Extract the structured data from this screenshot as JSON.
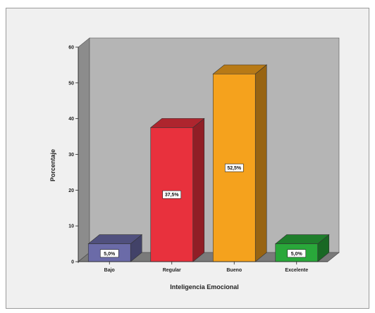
{
  "chart_data": {
    "type": "bar",
    "title": "",
    "xlabel": "Inteligencia Emocional",
    "ylabel": "Porcentaje",
    "categories": [
      "Bajo",
      "Regular",
      "Bueno",
      "Excelente"
    ],
    "values": [
      5.0,
      37.5,
      52.5,
      5.0
    ],
    "data_labels": [
      "5,0%",
      "37,5%",
      "52,5%",
      "5,0%"
    ],
    "y_ticks": [
      0,
      10,
      20,
      30,
      40,
      50,
      60
    ],
    "y_tick_labels": [
      "0",
      "10",
      "20",
      "30",
      "40",
      "50",
      "60"
    ],
    "ylim": [
      0,
      60
    ],
    "grid": false,
    "legend": "none",
    "style": "3d-bars",
    "colors": {
      "bars": [
        "#6b6ba8",
        "#e8313d",
        "#f5a21d",
        "#29a83a"
      ],
      "wall": "#b5b5b5",
      "wall_side": "#8c8c8c",
      "floor": "#7a7a7a",
      "background": "#f0f0f0"
    }
  }
}
